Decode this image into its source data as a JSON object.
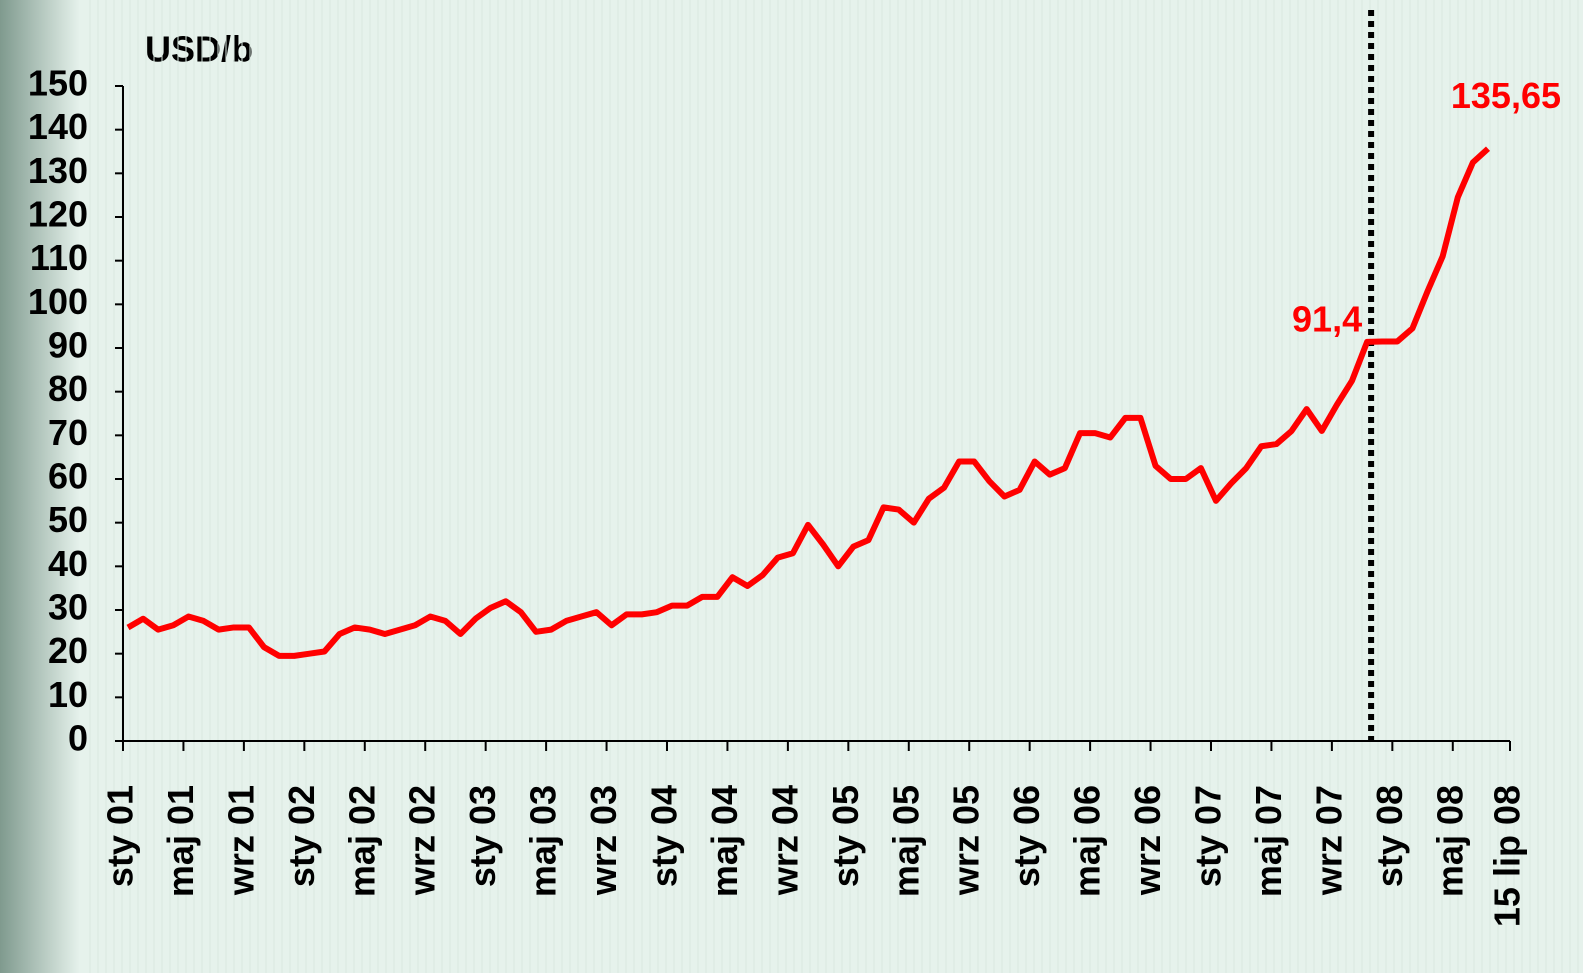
{
  "chart_data": {
    "type": "line",
    "title": "USD/b",
    "color": "#ff0000",
    "categories": [
      "sty 01",
      null,
      null,
      null,
      "maj 01",
      null,
      null,
      null,
      "wrz 01",
      null,
      null,
      null,
      "sty 02",
      null,
      null,
      null,
      "maj 02",
      null,
      null,
      null,
      "wrz 02",
      null,
      null,
      null,
      "sty 03",
      null,
      null,
      null,
      "maj 03",
      null,
      null,
      null,
      "wrz 03",
      null,
      null,
      null,
      "sty 04",
      null,
      null,
      null,
      "maj 04",
      null,
      null,
      null,
      "wrz 04",
      null,
      null,
      null,
      "sty 05",
      null,
      null,
      null,
      "maj 05",
      null,
      null,
      null,
      "wrz 05",
      null,
      null,
      null,
      "sty 06",
      null,
      null,
      null,
      "maj 06",
      null,
      null,
      null,
      "wrz 06",
      null,
      null,
      null,
      "sty 07",
      null,
      null,
      null,
      "maj 07",
      null,
      null,
      null,
      "wrz 07",
      null,
      null,
      null,
      "sty 08",
      null,
      null,
      null,
      "maj 08",
      null,
      "15 lip 08"
    ],
    "values": [
      26,
      28,
      25.5,
      26.5,
      28.5,
      27.5,
      25.5,
      26,
      26,
      21.5,
      19.5,
      19.5,
      20,
      20.5,
      24.5,
      26,
      25.5,
      24.5,
      25.5,
      26.5,
      28.5,
      27.5,
      24.5,
      28,
      30.5,
      32,
      29.5,
      25,
      25.5,
      27.5,
      28.5,
      29.5,
      26.5,
      29,
      29,
      29.5,
      31,
      31,
      33,
      33,
      37.5,
      35.5,
      38,
      42,
      43,
      49.5,
      45,
      40,
      44.5,
      46,
      53.5,
      53,
      50,
      55.5,
      58,
      64,
      64,
      59.5,
      56,
      57.5,
      64,
      61,
      62.5,
      70.5,
      70.5,
      69.5,
      74,
      74,
      63,
      60,
      60,
      62.5,
      55,
      59,
      62.5,
      67.5,
      68,
      71,
      76,
      71,
      77,
      82.5,
      91.4,
      91.5,
      91.5,
      94.5,
      103,
      111,
      124.5,
      132.5,
      135.65
    ],
    "value_labels": [
      null,
      null,
      null,
      null,
      null,
      null,
      null,
      null,
      null,
      null,
      null,
      null,
      null,
      null,
      null,
      null,
      null,
      null,
      null,
      null,
      null,
      null,
      null,
      null,
      null,
      null,
      null,
      null,
      null,
      null,
      null,
      null,
      null,
      null,
      null,
      null,
      null,
      null,
      null,
      null,
      null,
      null,
      null,
      null,
      null,
      null,
      null,
      null,
      null,
      null,
      null,
      null,
      null,
      null,
      null,
      null,
      null,
      null,
      null,
      null,
      null,
      null,
      null,
      null,
      null,
      null,
      null,
      null,
      null,
      null,
      null,
      null,
      null,
      null,
      null,
      null,
      null,
      null,
      null,
      null,
      null,
      null,
      "91,4",
      null,
      null,
      null,
      null,
      null,
      null,
      null,
      "135,65"
    ],
    "ylim": [
      0,
      150
    ],
    "yticks": [
      0,
      10,
      20,
      30,
      40,
      50,
      60,
      70,
      80,
      90,
      100,
      110,
      120,
      130,
      140,
      150
    ]
  }
}
